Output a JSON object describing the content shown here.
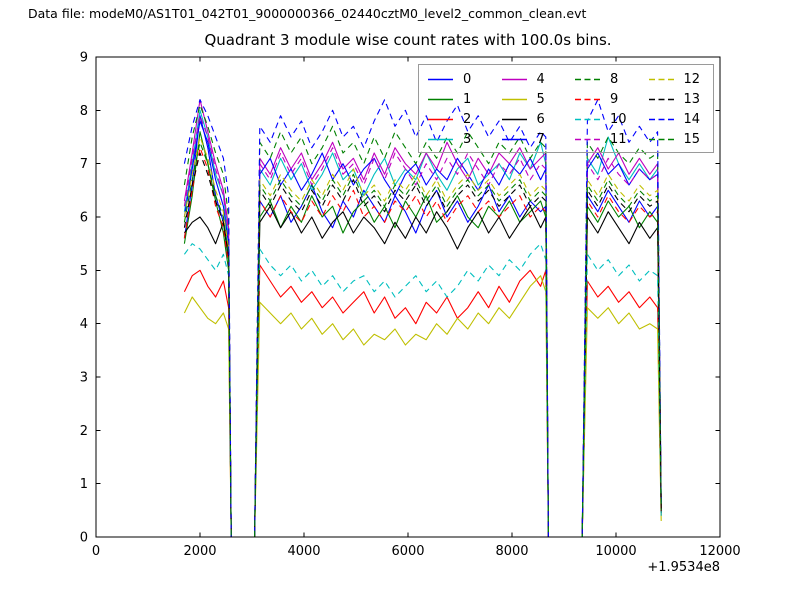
{
  "header": {
    "datafile": "Data file: modeM0/AS1T01_042T01_9000000366_02440cztM0_level2_common_clean.evt"
  },
  "chart_data": {
    "type": "line",
    "title": "Quadrant 3 module wise count rates with 100.0s bins.",
    "xlabel": "",
    "ylabel": "",
    "x_offset_text": "+1.9534e8",
    "xlim": [
      0,
      12000
    ],
    "ylim": [
      0,
      9
    ],
    "xticks": [
      0,
      2000,
      4000,
      6000,
      8000,
      10000,
      12000
    ],
    "yticks": [
      0,
      1,
      2,
      3,
      4,
      5,
      6,
      7,
      8,
      9
    ],
    "grid": false,
    "legend": {
      "location": "upper right",
      "columns": 4
    },
    "x": [
      1700,
      1850,
      2000,
      2150,
      2300,
      2450,
      2550,
      2600,
      3050,
      3150,
      3350,
      3550,
      3750,
      3950,
      4150,
      4350,
      4550,
      4750,
      4950,
      5150,
      5350,
      5550,
      5750,
      5950,
      6150,
      6350,
      6550,
      6750,
      6950,
      7150,
      7350,
      7550,
      7750,
      7950,
      8150,
      8350,
      8550,
      8650,
      8700,
      9350,
      9450,
      9650,
      9850,
      10050,
      10250,
      10450,
      10650,
      10800,
      10870
    ],
    "series": [
      {
        "name": "0",
        "color": "#0000ff",
        "style": "solid",
        "y": [
          5.6,
          6.6,
          7.9,
          7.3,
          6.4,
          5.9,
          5.2,
          0,
          0,
          6.3,
          6.0,
          6.4,
          5.9,
          6.2,
          6.6,
          6.1,
          5.8,
          6.3,
          6.0,
          6.5,
          6.2,
          5.9,
          6.4,
          6.1,
          5.7,
          6.2,
          6.5,
          6.0,
          6.3,
          5.9,
          6.2,
          6.6,
          6.1,
          6.4,
          6.0,
          6.3,
          6.1,
          6.2,
          0,
          0,
          6.4,
          6.1,
          6.5,
          6.2,
          5.9,
          6.3,
          6.0,
          6.2,
          0.5
        ]
      },
      {
        "name": "1",
        "color": "#008000",
        "style": "solid",
        "y": [
          5.5,
          6.4,
          7.6,
          7.0,
          6.3,
          5.7,
          5.0,
          0,
          0,
          6.0,
          6.3,
          5.8,
          6.2,
          5.9,
          6.4,
          6.0,
          6.2,
          5.7,
          6.1,
          6.3,
          5.9,
          6.2,
          5.8,
          6.3,
          6.0,
          6.4,
          5.9,
          6.1,
          6.4,
          6.0,
          5.8,
          6.2,
          6.0,
          6.3,
          5.9,
          6.1,
          6.3,
          6.0,
          0,
          0,
          6.2,
          5.9,
          6.3,
          6.0,
          6.2,
          5.8,
          6.1,
          5.9,
          0.5
        ]
      },
      {
        "name": "2",
        "color": "#ff0000",
        "style": "solid",
        "y": [
          4.6,
          4.9,
          5.0,
          4.7,
          4.5,
          4.8,
          4.3,
          0,
          0,
          5.1,
          4.8,
          4.5,
          4.7,
          4.4,
          4.6,
          4.3,
          4.5,
          4.2,
          4.4,
          4.6,
          4.2,
          4.5,
          4.1,
          4.3,
          4.0,
          4.4,
          4.2,
          4.5,
          4.1,
          4.3,
          4.6,
          4.3,
          4.7,
          4.4,
          4.8,
          5.0,
          4.7,
          5.0,
          0,
          0,
          4.8,
          4.5,
          4.7,
          4.4,
          4.6,
          4.3,
          4.5,
          4.3,
          0.4
        ]
      },
      {
        "name": "3",
        "color": "#00bfbf",
        "style": "solid",
        "y": [
          6.1,
          7.0,
          8.0,
          7.5,
          6.8,
          6.4,
          5.6,
          0,
          0,
          6.9,
          6.6,
          7.1,
          6.7,
          7.0,
          6.5,
          6.8,
          7.2,
          6.7,
          6.9,
          6.4,
          6.8,
          7.1,
          6.6,
          6.9,
          6.7,
          7.2,
          6.8,
          6.5,
          6.9,
          7.1,
          6.6,
          6.8,
          7.0,
          6.7,
          7.2,
          6.9,
          7.4,
          7.0,
          0,
          0,
          7.1,
          6.8,
          7.5,
          7.0,
          6.7,
          7.0,
          6.7,
          6.9,
          0.6
        ]
      },
      {
        "name": "4",
        "color": "#bf00bf",
        "style": "solid",
        "y": [
          6.3,
          7.2,
          8.2,
          7.6,
          7.0,
          6.5,
          5.8,
          0,
          0,
          7.1,
          6.8,
          7.3,
          6.9,
          7.2,
          6.7,
          7.0,
          7.4,
          6.9,
          7.1,
          6.7,
          7.2,
          6.8,
          7.3,
          7.0,
          6.8,
          7.2,
          6.9,
          7.4,
          7.0,
          6.7,
          7.1,
          6.8,
          7.2,
          7.0,
          7.3,
          6.9,
          7.1,
          7.2,
          0,
          0,
          7.0,
          7.3,
          6.9,
          7.2,
          6.8,
          7.1,
          6.8,
          7.0,
          0.5
        ]
      },
      {
        "name": "5",
        "color": "#bfbf00",
        "style": "solid",
        "y": [
          4.2,
          4.5,
          4.3,
          4.1,
          4.0,
          4.2,
          3.9,
          0,
          0,
          4.4,
          4.2,
          4.0,
          4.2,
          3.9,
          4.1,
          3.8,
          4.0,
          3.7,
          3.9,
          3.6,
          3.8,
          3.7,
          3.9,
          3.6,
          3.8,
          3.7,
          4.0,
          3.8,
          4.1,
          3.9,
          4.2,
          4.0,
          4.3,
          4.1,
          4.4,
          4.7,
          4.9,
          4.6,
          0,
          0,
          4.3,
          4.1,
          4.3,
          4.0,
          4.2,
          3.9,
          4.0,
          3.9,
          0.3
        ]
      },
      {
        "name": "6",
        "color": "#000000",
        "style": "solid",
        "y": [
          5.7,
          5.9,
          6.0,
          5.8,
          5.5,
          5.9,
          5.2,
          0,
          0,
          5.9,
          6.2,
          5.8,
          6.1,
          5.7,
          6.0,
          5.6,
          5.9,
          6.1,
          5.7,
          6.0,
          5.8,
          5.5,
          5.9,
          5.6,
          6.0,
          5.7,
          6.1,
          5.8,
          5.4,
          5.8,
          6.1,
          5.7,
          6.0,
          5.6,
          5.9,
          6.2,
          5.8,
          6.0,
          0,
          0,
          6.0,
          5.7,
          6.1,
          5.8,
          5.5,
          5.9,
          5.6,
          5.8,
          0.45
        ]
      },
      {
        "name": "7",
        "color": "#0000ff",
        "style": "solid",
        "y": [
          6.0,
          6.9,
          7.8,
          7.4,
          6.7,
          6.2,
          5.5,
          0,
          0,
          6.8,
          7.1,
          6.6,
          6.9,
          6.5,
          6.8,
          7.2,
          6.7,
          7.0,
          6.6,
          6.9,
          7.1,
          6.7,
          6.4,
          6.8,
          7.0,
          6.6,
          6.9,
          6.7,
          7.1,
          6.8,
          6.5,
          6.9,
          6.6,
          7.0,
          6.8,
          7.1,
          6.7,
          6.9,
          0,
          0,
          6.9,
          7.2,
          6.8,
          7.0,
          6.6,
          6.9,
          6.7,
          6.8,
          0.5
        ]
      },
      {
        "name": "8",
        "color": "#008000",
        "style": "dashed",
        "y": [
          6.6,
          7.5,
          8.1,
          7.7,
          7.2,
          6.8,
          6.0,
          0,
          0,
          7.4,
          7.1,
          7.6,
          7.2,
          7.5,
          7.0,
          7.3,
          7.7,
          7.2,
          7.4,
          7.0,
          7.5,
          7.1,
          7.6,
          7.3,
          7.0,
          7.4,
          7.1,
          7.5,
          7.2,
          7.6,
          7.3,
          7.0,
          7.4,
          7.2,
          7.5,
          7.1,
          7.4,
          7.3,
          0,
          0,
          7.4,
          7.1,
          7.5,
          7.2,
          7.0,
          7.3,
          7.1,
          7.2,
          0.55
        ]
      },
      {
        "name": "9",
        "color": "#ff0000",
        "style": "dashed",
        "y": [
          5.6,
          6.5,
          7.3,
          6.9,
          6.2,
          5.8,
          5.1,
          0,
          0,
          6.3,
          6.0,
          6.4,
          6.1,
          5.9,
          6.3,
          6.0,
          6.4,
          6.1,
          6.5,
          6.0,
          6.2,
          5.9,
          6.3,
          6.1,
          6.4,
          6.0,
          6.3,
          5.9,
          6.2,
          6.4,
          6.1,
          6.3,
          6.0,
          6.2,
          6.4,
          6.0,
          6.2,
          6.1,
          0,
          0,
          6.3,
          6.0,
          6.4,
          6.1,
          5.9,
          6.2,
          6.0,
          6.1,
          0.5
        ]
      },
      {
        "name": "10",
        "color": "#00bfbf",
        "style": "dashed",
        "y": [
          5.3,
          5.5,
          5.4,
          5.2,
          5.0,
          5.3,
          4.9,
          0,
          0,
          5.4,
          5.1,
          4.9,
          5.1,
          4.8,
          5.0,
          4.7,
          4.9,
          4.6,
          4.8,
          4.9,
          4.6,
          4.8,
          4.5,
          4.7,
          4.9,
          4.6,
          4.8,
          4.5,
          4.7,
          5.0,
          4.8,
          5.1,
          4.9,
          5.2,
          5.0,
          5.3,
          5.5,
          5.2,
          0,
          0,
          5.3,
          5.0,
          5.2,
          4.9,
          5.1,
          4.8,
          5.0,
          4.9,
          0.4
        ]
      },
      {
        "name": "11",
        "color": "#bf00bf",
        "style": "dashed",
        "y": [
          6.2,
          7.1,
          7.9,
          7.5,
          6.9,
          6.4,
          5.7,
          0,
          0,
          7.0,
          6.7,
          7.2,
          6.8,
          7.1,
          6.6,
          6.9,
          7.3,
          6.8,
          7.0,
          6.6,
          7.1,
          6.7,
          7.2,
          6.9,
          6.6,
          7.0,
          6.7,
          7.1,
          6.8,
          7.2,
          6.9,
          6.6,
          7.0,
          6.8,
          7.1,
          6.7,
          7.0,
          6.9,
          0,
          0,
          7.0,
          6.7,
          7.1,
          6.8,
          6.6,
          6.9,
          6.7,
          6.8,
          0.5
        ]
      },
      {
        "name": "12",
        "color": "#bfbf00",
        "style": "dashed",
        "y": [
          6.0,
          6.8,
          7.5,
          7.1,
          6.5,
          6.1,
          5.4,
          0,
          0,
          6.7,
          6.4,
          6.8,
          6.5,
          6.3,
          6.7,
          6.4,
          6.8,
          6.5,
          6.9,
          6.4,
          6.6,
          6.3,
          6.7,
          6.5,
          6.8,
          6.4,
          6.7,
          6.3,
          6.6,
          6.8,
          6.5,
          6.7,
          6.4,
          6.6,
          6.8,
          6.4,
          6.6,
          6.5,
          0,
          0,
          6.7,
          6.4,
          6.8,
          6.5,
          6.3,
          6.6,
          6.4,
          6.5,
          0.5
        ]
      },
      {
        "name": "13",
        "color": "#000000",
        "style": "dashed",
        "y": [
          5.8,
          6.6,
          7.2,
          6.8,
          6.3,
          5.9,
          5.3,
          0,
          0,
          6.5,
          6.2,
          6.6,
          6.3,
          6.1,
          6.5,
          6.2,
          6.6,
          6.3,
          6.7,
          6.2,
          6.4,
          6.1,
          6.5,
          6.3,
          6.6,
          6.2,
          6.5,
          6.1,
          6.4,
          6.6,
          6.3,
          6.5,
          6.2,
          6.4,
          6.6,
          6.2,
          6.4,
          6.3,
          0,
          0,
          6.5,
          6.2,
          6.6,
          6.3,
          6.1,
          6.4,
          6.2,
          6.3,
          0.5
        ]
      },
      {
        "name": "14",
        "color": "#0000ff",
        "style": "dashed",
        "y": [
          7.0,
          7.7,
          8.2,
          7.9,
          7.5,
          7.1,
          6.4,
          0,
          0,
          7.7,
          7.4,
          7.9,
          7.5,
          7.8,
          7.3,
          7.6,
          8.0,
          7.5,
          7.7,
          7.3,
          7.8,
          8.2,
          7.7,
          8.0,
          7.5,
          7.9,
          7.4,
          7.8,
          8.1,
          7.6,
          7.9,
          7.5,
          7.8,
          7.4,
          7.7,
          7.3,
          7.6,
          7.5,
          0,
          0,
          7.8,
          8.2,
          7.6,
          7.9,
          7.4,
          7.7,
          7.4,
          7.6,
          0.6
        ]
      },
      {
        "name": "15",
        "color": "#008000",
        "style": "dashed",
        "y": [
          5.9,
          6.7,
          7.4,
          7.0,
          6.4,
          6.0,
          5.3,
          0,
          0,
          6.6,
          6.3,
          6.7,
          6.4,
          6.2,
          6.6,
          6.3,
          6.7,
          6.4,
          6.8,
          6.3,
          6.5,
          6.2,
          6.6,
          6.4,
          6.7,
          6.3,
          6.6,
          6.2,
          6.5,
          6.7,
          6.4,
          6.6,
          6.3,
          6.5,
          6.7,
          6.3,
          6.5,
          6.4,
          0,
          0,
          6.6,
          6.3,
          6.7,
          6.4,
          6.2,
          6.5,
          6.3,
          6.4,
          0.5
        ]
      }
    ]
  }
}
